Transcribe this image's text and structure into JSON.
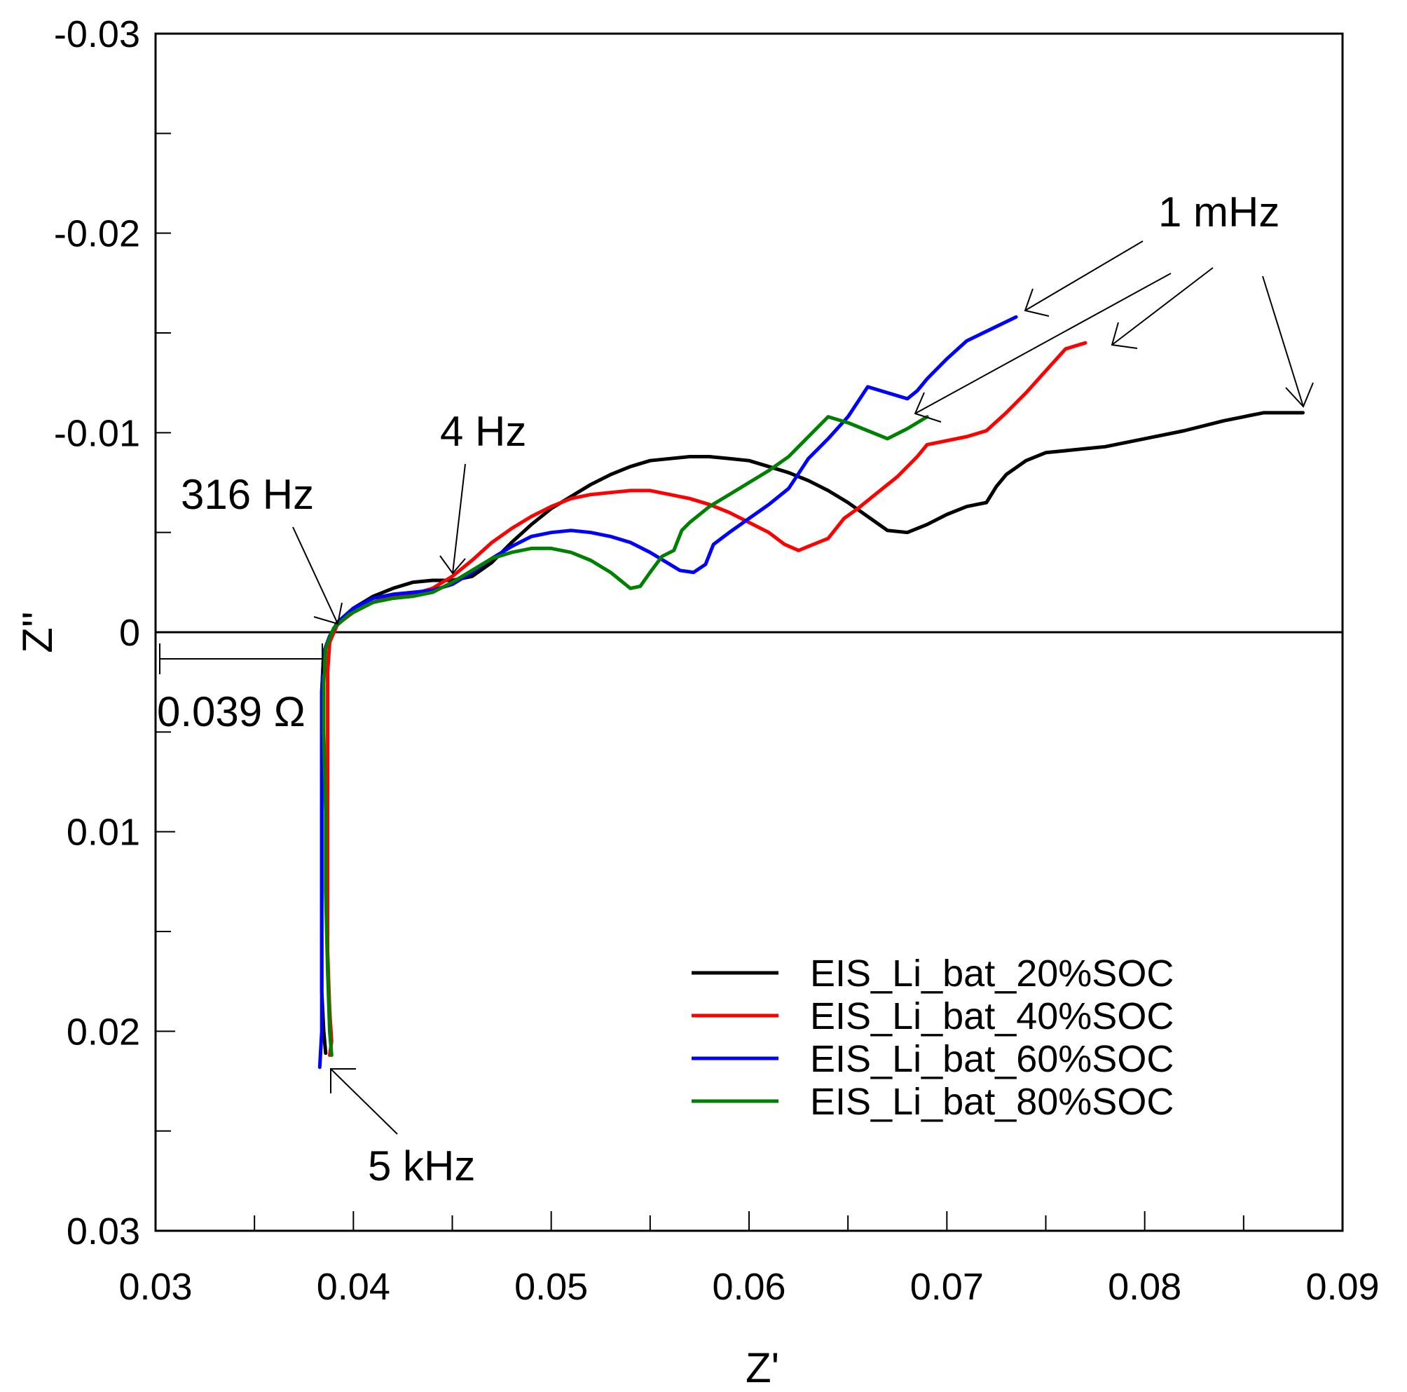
{
  "chart_data": {
    "type": "line",
    "xlabel": "Z'",
    "ylabel": "Z''",
    "xlim": [
      0.03,
      0.09
    ],
    "ylim": [
      0.03,
      -0.03
    ],
    "x_ticks": [
      0.03,
      0.04,
      0.05,
      0.06,
      0.07,
      0.08,
      0.09
    ],
    "x_tick_labels": [
      "0.03",
      "0.04",
      "0.05",
      "0.06",
      "0.07",
      "0.08",
      "0.09"
    ],
    "y_ticks": [
      -0.03,
      -0.02,
      -0.01,
      0,
      0.01,
      0.02,
      0.03
    ],
    "y_tick_labels": [
      "-0.03",
      "-0.02",
      "-0.01",
      "0",
      "0.01",
      "0.02",
      "0.03"
    ],
    "zero_line": true,
    "series": [
      {
        "name": "EIS_Li_bat_20%SOC",
        "color": "#000000",
        "points": [
          [
            0.0386,
            0.0211
          ],
          [
            0.0385,
            0.02
          ],
          [
            0.0384,
            0.018
          ],
          [
            0.0384,
            0.014
          ],
          [
            0.0384,
            0.01
          ],
          [
            0.0384,
            0.006
          ],
          [
            0.0384,
            0.003
          ],
          [
            0.0385,
            0.001
          ],
          [
            0.0388,
            0.0002
          ],
          [
            0.0392,
            -0.0005
          ],
          [
            0.04,
            -0.0012
          ],
          [
            0.041,
            -0.0018
          ],
          [
            0.042,
            -0.0022
          ],
          [
            0.043,
            -0.0025
          ],
          [
            0.044,
            -0.0026
          ],
          [
            0.045,
            -0.0026
          ],
          [
            0.046,
            -0.0028
          ],
          [
            0.047,
            -0.0035
          ],
          [
            0.048,
            -0.0045
          ],
          [
            0.049,
            -0.0054
          ],
          [
            0.05,
            -0.0062
          ],
          [
            0.051,
            -0.0068
          ],
          [
            0.052,
            -0.0074
          ],
          [
            0.053,
            -0.0079
          ],
          [
            0.054,
            -0.0083
          ],
          [
            0.055,
            -0.0086
          ],
          [
            0.056,
            -0.0087
          ],
          [
            0.057,
            -0.0088
          ],
          [
            0.058,
            -0.0088
          ],
          [
            0.059,
            -0.0087
          ],
          [
            0.06,
            -0.0086
          ],
          [
            0.061,
            -0.0083
          ],
          [
            0.062,
            -0.008
          ],
          [
            0.063,
            -0.0076
          ],
          [
            0.064,
            -0.0071
          ],
          [
            0.065,
            -0.0065
          ],
          [
            0.066,
            -0.0058
          ],
          [
            0.067,
            -0.0051
          ],
          [
            0.068,
            -0.005
          ],
          [
            0.069,
            -0.0054
          ],
          [
            0.07,
            -0.0059
          ],
          [
            0.071,
            -0.0063
          ],
          [
            0.072,
            -0.0065
          ],
          [
            0.0725,
            -0.0073
          ],
          [
            0.073,
            -0.0079
          ],
          [
            0.074,
            -0.0086
          ],
          [
            0.075,
            -0.009
          ],
          [
            0.076,
            -0.0091
          ],
          [
            0.078,
            -0.0093
          ],
          [
            0.08,
            -0.0097
          ],
          [
            0.082,
            -0.0101
          ],
          [
            0.084,
            -0.0106
          ],
          [
            0.086,
            -0.011
          ],
          [
            0.088,
            -0.011
          ]
        ]
      },
      {
        "name": "EIS_Li_bat_40%SOC",
        "color": "#ff0000",
        "points": [
          [
            0.0388,
            0.0212
          ],
          [
            0.0389,
            0.0205
          ],
          [
            0.0388,
            0.019
          ],
          [
            0.0387,
            0.016
          ],
          [
            0.0387,
            0.012
          ],
          [
            0.0387,
            0.008
          ],
          [
            0.0387,
            0.004
          ],
          [
            0.0387,
            0.002
          ],
          [
            0.0388,
            0.0005
          ],
          [
            0.0392,
            -0.0004
          ],
          [
            0.04,
            -0.001
          ],
          [
            0.041,
            -0.0015
          ],
          [
            0.042,
            -0.0018
          ],
          [
            0.043,
            -0.0019
          ],
          [
            0.044,
            -0.0022
          ],
          [
            0.045,
            -0.0028
          ],
          [
            0.046,
            -0.0036
          ],
          [
            0.047,
            -0.0045
          ],
          [
            0.048,
            -0.0052
          ],
          [
            0.049,
            -0.0058
          ],
          [
            0.05,
            -0.0063
          ],
          [
            0.051,
            -0.0067
          ],
          [
            0.052,
            -0.0069
          ],
          [
            0.053,
            -0.007
          ],
          [
            0.054,
            -0.0071
          ],
          [
            0.055,
            -0.0071
          ],
          [
            0.056,
            -0.0069
          ],
          [
            0.057,
            -0.0067
          ],
          [
            0.058,
            -0.0064
          ],
          [
            0.059,
            -0.006
          ],
          [
            0.06,
            -0.0055
          ],
          [
            0.061,
            -0.005
          ],
          [
            0.0618,
            -0.0044
          ],
          [
            0.0625,
            -0.0041
          ],
          [
            0.063,
            -0.0043
          ],
          [
            0.064,
            -0.0047
          ],
          [
            0.0648,
            -0.0057
          ],
          [
            0.0655,
            -0.0062
          ],
          [
            0.0665,
            -0.007
          ],
          [
            0.0675,
            -0.0078
          ],
          [
            0.0685,
            -0.0088
          ],
          [
            0.069,
            -0.0094
          ],
          [
            0.071,
            -0.0098
          ],
          [
            0.072,
            -0.0101
          ],
          [
            0.073,
            -0.011
          ],
          [
            0.074,
            -0.012
          ],
          [
            0.075,
            -0.0131
          ],
          [
            0.076,
            -0.0142
          ],
          [
            0.077,
            -0.0145
          ]
        ]
      },
      {
        "name": "EIS_Li_bat_60%SOC",
        "color": "#0000ff",
        "points": [
          [
            0.0383,
            0.0218
          ],
          [
            0.0384,
            0.02
          ],
          [
            0.0384,
            0.015
          ],
          [
            0.0384,
            0.01
          ],
          [
            0.0384,
            0.006
          ],
          [
            0.0384,
            0.003
          ],
          [
            0.0385,
            0.001
          ],
          [
            0.0388,
            0.0002
          ],
          [
            0.0392,
            -0.0005
          ],
          [
            0.04,
            -0.0012
          ],
          [
            0.041,
            -0.0017
          ],
          [
            0.042,
            -0.0019
          ],
          [
            0.043,
            -0.002
          ],
          [
            0.044,
            -0.0021
          ],
          [
            0.045,
            -0.0024
          ],
          [
            0.046,
            -0.003
          ],
          [
            0.047,
            -0.0037
          ],
          [
            0.048,
            -0.0043
          ],
          [
            0.049,
            -0.0048
          ],
          [
            0.05,
            -0.005
          ],
          [
            0.051,
            -0.0051
          ],
          [
            0.052,
            -0.005
          ],
          [
            0.053,
            -0.0048
          ],
          [
            0.054,
            -0.0045
          ],
          [
            0.055,
            -0.004
          ],
          [
            0.056,
            -0.0034
          ],
          [
            0.0565,
            -0.0031
          ],
          [
            0.0572,
            -0.003
          ],
          [
            0.0578,
            -0.0034
          ],
          [
            0.0582,
            -0.0044
          ],
          [
            0.059,
            -0.005
          ],
          [
            0.06,
            -0.0057
          ],
          [
            0.061,
            -0.0064
          ],
          [
            0.062,
            -0.0072
          ],
          [
            0.063,
            -0.0087
          ],
          [
            0.064,
            -0.0097
          ],
          [
            0.065,
            -0.0108
          ],
          [
            0.066,
            -0.0123
          ],
          [
            0.067,
            -0.012
          ],
          [
            0.068,
            -0.0117
          ],
          [
            0.0685,
            -0.0121
          ],
          [
            0.069,
            -0.0127
          ],
          [
            0.07,
            -0.0137
          ],
          [
            0.071,
            -0.0146
          ],
          [
            0.0735,
            -0.0158
          ]
        ]
      },
      {
        "name": "EIS_Li_bat_80%SOC",
        "color": "#008000",
        "points": [
          [
            0.0389,
            0.0212
          ],
          [
            0.0388,
            0.02
          ],
          [
            0.0387,
            0.017
          ],
          [
            0.0386,
            0.013
          ],
          [
            0.0386,
            0.009
          ],
          [
            0.0385,
            0.005
          ],
          [
            0.0385,
            0.0025
          ],
          [
            0.0386,
            0.0008
          ],
          [
            0.039,
            -0.0002
          ],
          [
            0.0398,
            -0.0009
          ],
          [
            0.041,
            -0.0015
          ],
          [
            0.042,
            -0.0017
          ],
          [
            0.043,
            -0.0018
          ],
          [
            0.044,
            -0.002
          ],
          [
            0.045,
            -0.0025
          ],
          [
            0.046,
            -0.0031
          ],
          [
            0.047,
            -0.0037
          ],
          [
            0.048,
            -0.004
          ],
          [
            0.049,
            -0.0042
          ],
          [
            0.05,
            -0.0042
          ],
          [
            0.051,
            -0.004
          ],
          [
            0.052,
            -0.0036
          ],
          [
            0.053,
            -0.003
          ],
          [
            0.0535,
            -0.0026
          ],
          [
            0.054,
            -0.0022
          ],
          [
            0.0545,
            -0.0023
          ],
          [
            0.055,
            -0.003
          ],
          [
            0.0556,
            -0.0038
          ],
          [
            0.0562,
            -0.0041
          ],
          [
            0.0566,
            -0.0051
          ],
          [
            0.057,
            -0.0055
          ],
          [
            0.058,
            -0.0063
          ],
          [
            0.059,
            -0.0069
          ],
          [
            0.06,
            -0.0075
          ],
          [
            0.061,
            -0.0081
          ],
          [
            0.062,
            -0.0088
          ],
          [
            0.063,
            -0.0098
          ],
          [
            0.064,
            -0.0108
          ],
          [
            0.065,
            -0.0105
          ],
          [
            0.066,
            -0.0101
          ],
          [
            0.067,
            -0.0097
          ],
          [
            0.068,
            -0.0102
          ],
          [
            0.069,
            -0.0108
          ]
        ]
      }
    ],
    "annotations": [
      {
        "text": "316 Hz",
        "anchor": [
          0.039,
          0
        ]
      },
      {
        "text": "4 Hz",
        "anchor": [
          0.045,
          -0.0029
        ]
      },
      {
        "text": "5 kHz",
        "anchor": [
          0.0388,
          0.0213
        ]
      },
      {
        "text": "1 mHz",
        "anchor": "low-frequency endpoints"
      },
      {
        "text": "0.039 Ω",
        "anchor": [
          0.039,
          0.0013
        ]
      }
    ],
    "legend": {
      "position": "bottom-right",
      "entries": [
        "EIS_Li_bat_20%SOC",
        "EIS_Li_bat_40%SOC",
        "EIS_Li_bat_60%SOC",
        "EIS_Li_bat_80%SOC"
      ]
    }
  }
}
